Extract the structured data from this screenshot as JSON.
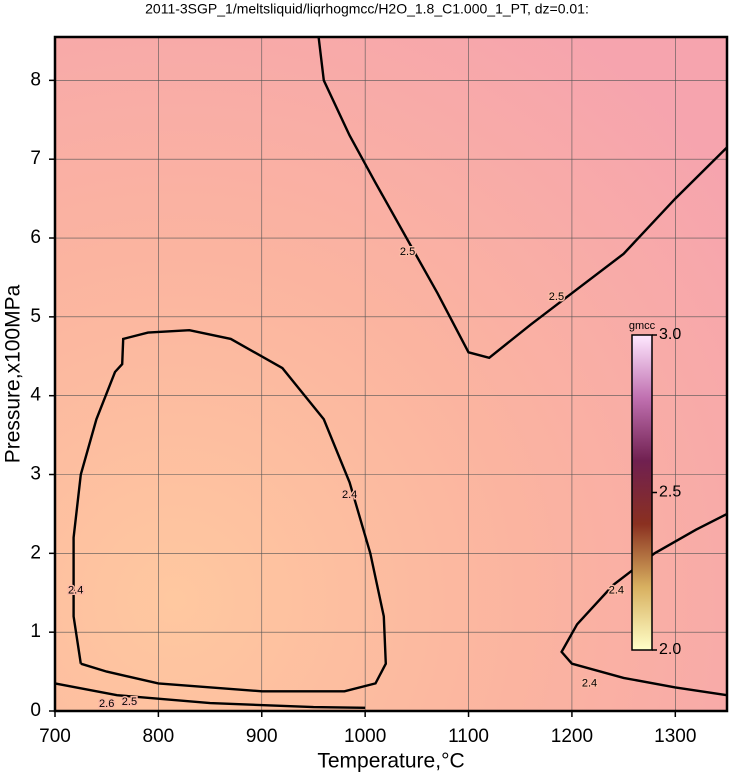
{
  "chart_data": {
    "type": "contour",
    "title": "2011-3SGP_1/meltsliquid/liqrhogmcc/H2O_1.8_C1.000_1_PT, dz=0.01:",
    "x_label": "Temperature,°C",
    "y_label": "Pressure,x100MPa",
    "xlim": [
      700,
      1350
    ],
    "ylim": [
      0,
      8.55
    ],
    "xticks": [
      700,
      800,
      900,
      1000,
      1100,
      1200,
      1300
    ],
    "yticks": [
      0,
      1,
      2,
      3,
      4,
      5,
      6,
      7,
      8
    ],
    "grid": true,
    "contours": [
      {
        "level": 2.4,
        "x": [
          725,
          718,
          718,
          725,
          740,
          758,
          765,
          766,
          790,
          830,
          870,
          920,
          960,
          985,
          1005,
          1018,
          1020,
          1010,
          980,
          900,
          800,
          750,
          725
        ],
        "y": [
          0.6,
          1.2,
          2.2,
          3.0,
          3.7,
          4.3,
          4.4,
          4.72,
          4.8,
          4.83,
          4.72,
          4.35,
          3.7,
          2.9,
          2.0,
          1.2,
          0.6,
          0.35,
          0.25,
          0.25,
          0.35,
          0.5,
          0.6
        ]
      },
      {
        "level": 2.5,
        "x": [
          955,
          960,
          985,
          1010,
          1040,
          1070,
          1100,
          1120,
          1160,
          1200,
          1250,
          1300,
          1350
        ],
        "y": [
          8.55,
          8.0,
          7.3,
          6.7,
          6.0,
          5.3,
          4.55,
          4.48,
          4.9,
          5.3,
          5.8,
          6.5,
          7.15
        ]
      },
      {
        "level": 2.4,
        "x": [
          1350,
          1320,
          1280,
          1240,
          1205,
          1190,
          1200,
          1250,
          1300,
          1350
        ],
        "y": [
          2.5,
          2.3,
          2.0,
          1.6,
          1.1,
          0.75,
          0.6,
          0.42,
          0.3,
          0.2
        ]
      },
      {
        "level": 2.5,
        "x": [
          700,
          760,
          850,
          950,
          1000
        ],
        "y": [
          0.35,
          0.2,
          0.1,
          0.05,
          0.04
        ]
      }
    ],
    "contour_labels": [
      {
        "label": "2.5",
        "x": 1041,
        "y": 5.82
      },
      {
        "label": "2.5",
        "x": 1185,
        "y": 5.25
      },
      {
        "label": "2.4",
        "x": 985,
        "y": 2.74
      },
      {
        "label": "2.4",
        "x": 720,
        "y": 1.53
      },
      {
        "label": "2.4",
        "x": 1243,
        "y": 1.53
      },
      {
        "label": "2.4",
        "x": 1217,
        "y": 0.35
      },
      {
        "label": "2.5",
        "x": 772,
        "y": 0.11
      },
      {
        "label": "2.6",
        "x": 750,
        "y": 0.09
      }
    ],
    "colorbar": {
      "title": "gmcc",
      "lim": [
        2.0,
        3.0
      ],
      "ticks": [
        {
          "value": 2,
          "label": "2.0"
        },
        {
          "value": 2.5,
          "label": "2.5"
        },
        {
          "value": 3,
          "label": "3.0"
        }
      ],
      "colors": [
        "#ffffc8",
        "#d8b060",
        "#8a3020",
        "#702050",
        "#c070b0",
        "#ffe8ff"
      ]
    }
  }
}
